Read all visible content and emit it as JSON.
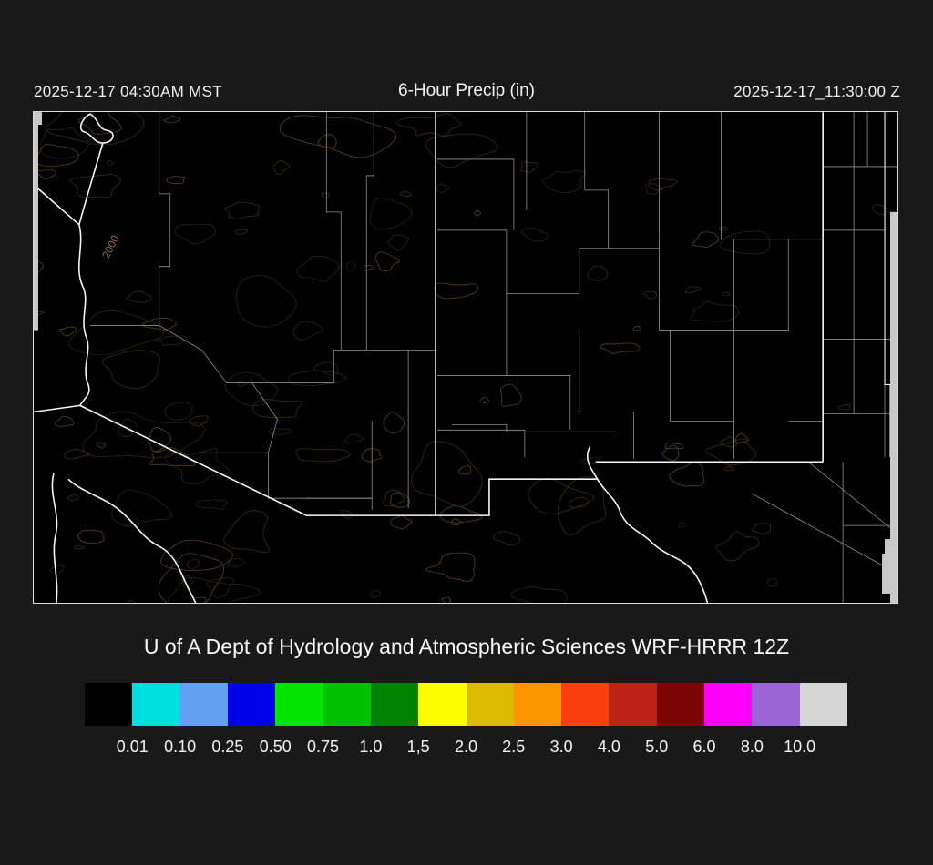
{
  "header": {
    "left_timestamp": "2025-12-17 04:30AM MST",
    "title": "6-Hour Precip (in)",
    "right_timestamp": "2025-12-17_11:30:00 Z"
  },
  "caption": "U of A Dept of Hydrology and Atmospheric Sciences WRF-HRRR 12Z",
  "map": {
    "contour_label": "2000",
    "background_color": "#000000",
    "state_border_color": "#f5f5f5",
    "county_border_color": "#8f8f8f",
    "contour_color": "#4a3018",
    "domain_edge_color": "#c9c9c9"
  },
  "colorbar": {
    "units": "in",
    "swatches": [
      {
        "color": "#000000",
        "boundary_label": "0.01"
      },
      {
        "color": "#00dfe0",
        "boundary_label": "0.10"
      },
      {
        "color": "#63a0f1",
        "boundary_label": "0.25"
      },
      {
        "color": "#0202e8",
        "boundary_label": "0.50"
      },
      {
        "color": "#00e400",
        "boundary_label": "0.75"
      },
      {
        "color": "#00c000",
        "boundary_label": "1.0"
      },
      {
        "color": "#008203",
        "boundary_label": "1,5"
      },
      {
        "color": "#fdfd00",
        "boundary_label": "2.0"
      },
      {
        "color": "#dcbc02",
        "boundary_label": "2.5"
      },
      {
        "color": "#fd9500",
        "boundary_label": "3.0"
      },
      {
        "color": "#fb3e0d",
        "boundary_label": "4.0"
      },
      {
        "color": "#bc2314",
        "boundary_label": "5.0"
      },
      {
        "color": "#7c0606",
        "boundary_label": "6.0"
      },
      {
        "color": "#fb00fb",
        "boundary_label": "8.0"
      },
      {
        "color": "#9a64d4",
        "boundary_label": "10.0"
      },
      {
        "color": "#d5d5d5",
        "boundary_label": null
      }
    ]
  }
}
